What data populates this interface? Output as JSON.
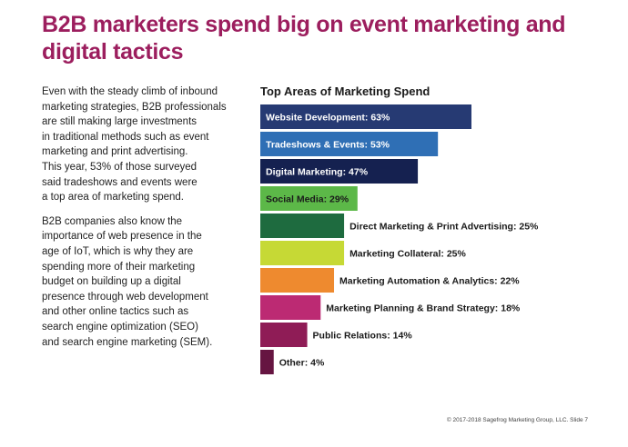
{
  "slide": {
    "title": "B2B marketers spend big on event marketing and digital tactics",
    "paragraphs": [
      "Even with the steady climb of inbound\nmarketing strategies, B2B professionals\nare still making large investments\nin traditional methods such as event\nmarketing and print advertising.\nThis year, 53% of those surveyed\nsaid tradeshows and events were\na top area of marketing spend.",
      "B2B companies also know the\nimportance of web presence in the\nage of IoT, which is why they are\nspending more of their marketing\nbudget on building up a digital\npresence through web development\nand other online tactics such as\nsearch engine optimization (SEO)\nand search engine marketing (SEM)."
    ],
    "footer": "© 2017-2018 Sagefrog Marketing Group, LLC.   Slide 7"
  },
  "chart_data": {
    "type": "bar",
    "orientation": "horizontal",
    "title": "Top Areas of Marketing Spend",
    "unit": "%",
    "categories": [
      "Website Development: 63%",
      "Tradeshows & Events: 53%",
      "Digital Marketing: 47%",
      "Social Media: 29%",
      "Direct Marketing & Print Advertising: 25%",
      "Marketing Collateral: 25%",
      "Marketing Automation & Analytics: 22%",
      "Marketing Planning & Brand Strategy: 18%",
      "Public Relations: 14%",
      "Other: 4%"
    ],
    "values": [
      63,
      53,
      47,
      29,
      25,
      25,
      22,
      18,
      14,
      4
    ],
    "colors": [
      "#263a73",
      "#2f6fb5",
      "#152150",
      "#5cb848",
      "#1e6b3f",
      "#c6d935",
      "#ee8a2f",
      "#bc2a73",
      "#8f1c56",
      "#661541"
    ],
    "label_colors": [
      "#ffffff",
      "#ffffff",
      "#ffffff",
      "#1a1a1a",
      "#1a1a1a",
      "#1a1a1a",
      "#1a1a1a",
      "#1a1a1a",
      "#1a1a1a",
      "#1a1a1a"
    ],
    "label_position": [
      "inside",
      "inside",
      "inside",
      "inside",
      "outside",
      "outside",
      "outside",
      "outside",
      "outside",
      "outside"
    ]
  }
}
